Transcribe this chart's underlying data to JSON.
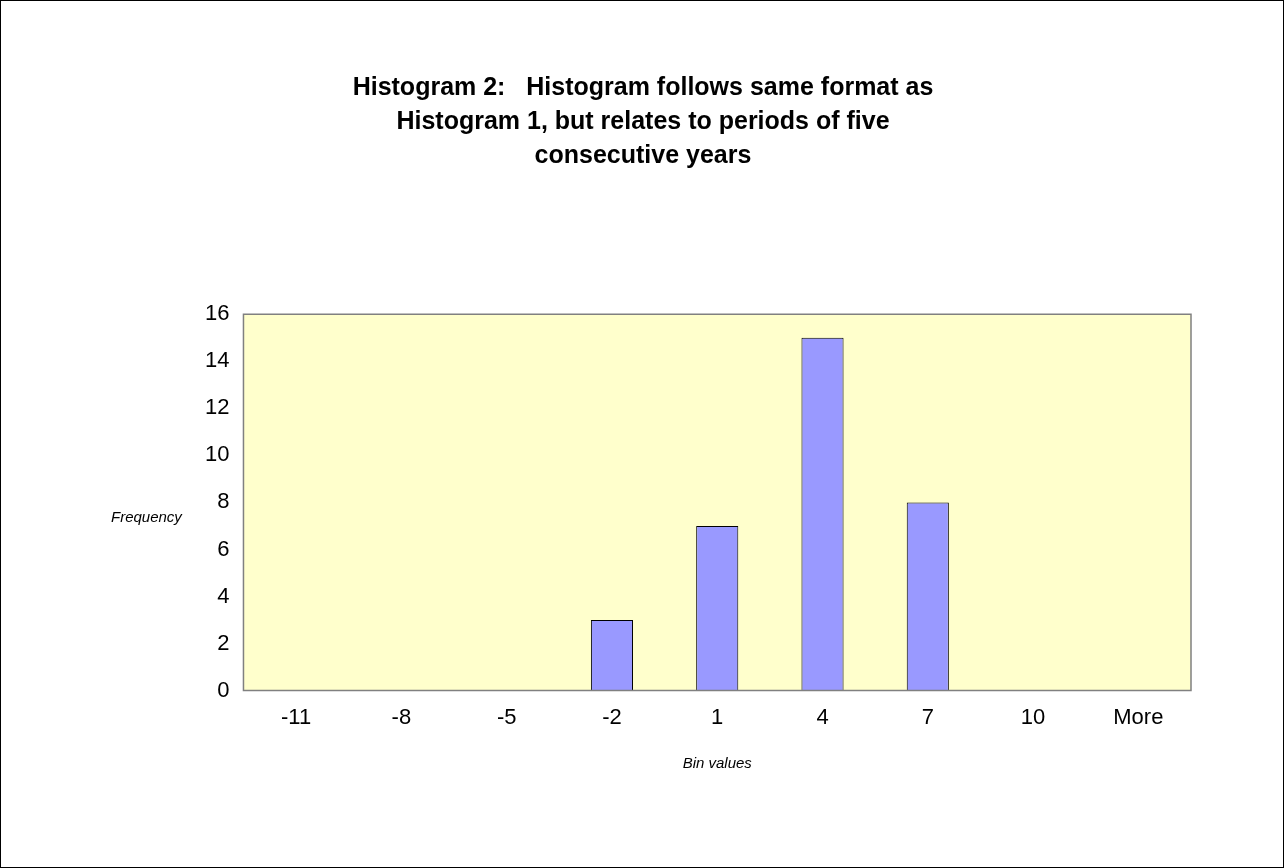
{
  "chart_data": {
    "type": "bar",
    "title": "Histogram 2:   Histogram follows same format as Histogram 1, but relates to periods of five consecutive years",
    "xlabel": "Bin values",
    "ylabel": "Frequency",
    "categories": [
      "-11",
      "-8",
      "-5",
      "-2",
      "1",
      "4",
      "7",
      "10",
      "More"
    ],
    "values": [
      0,
      0,
      0,
      3,
      7,
      15,
      8,
      0,
      0
    ],
    "color": "#9999ff",
    "ylim": [
      0,
      16
    ],
    "yticks": [
      0,
      2,
      4,
      6,
      8,
      10,
      12,
      14,
      16
    ],
    "grid": false,
    "legend": false
  }
}
